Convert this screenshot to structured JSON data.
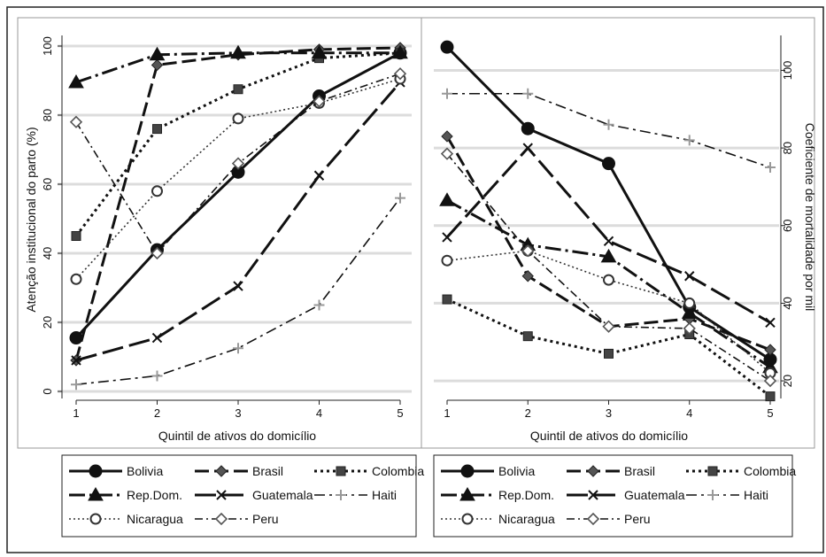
{
  "chart_data": [
    {
      "type": "line",
      "xlabel": "Quintil de ativos do domicílio",
      "ylabel": "Atenção institucional do parto (%)",
      "x": [
        1,
        2,
        3,
        4,
        5
      ],
      "xticks": [
        "1",
        "2",
        "3",
        "4",
        "5"
      ],
      "ylim": [
        0,
        100
      ],
      "yticks": [
        "0",
        "20",
        "40",
        "60",
        "80",
        "100"
      ],
      "grid": true,
      "series": [
        {
          "name": "Bolivia",
          "values": [
            15.5,
            41,
            63.5,
            85.5,
            98
          ]
        },
        {
          "name": "Brasil",
          "values": [
            9,
            94.5,
            97.5,
            99,
            99.5
          ]
        },
        {
          "name": "Colombia",
          "values": [
            45,
            76,
            87.5,
            96.5,
            98
          ]
        },
        {
          "name": "Rep.Dom.",
          "values": [
            89.5,
            97.5,
            98,
            98,
            98
          ]
        },
        {
          "name": "Guatemala",
          "values": [
            9,
            15.5,
            30.5,
            62.5,
            89.5
          ]
        },
        {
          "name": "Haiti",
          "values": [
            2,
            4.5,
            12.5,
            25,
            56
          ]
        },
        {
          "name": "Nicaragua",
          "values": [
            32.5,
            58,
            79,
            83.5,
            90.5
          ]
        },
        {
          "name": "Peru",
          "values": [
            78,
            40,
            66,
            84,
            92
          ]
        }
      ]
    },
    {
      "type": "line",
      "xlabel": "Quintil de ativos do domicílio",
      "ylabel": "Coeficiente de mortalidade por mil",
      "x": [
        1,
        2,
        3,
        4,
        5
      ],
      "xticks": [
        "1",
        "2",
        "3",
        "4",
        "5"
      ],
      "ylim": [
        15,
        109
      ],
      "yticks": [
        "20",
        "40",
        "60",
        "80",
        "100"
      ],
      "y_axis_side": "right",
      "grid": true,
      "series": [
        {
          "name": "Bolivia",
          "values": [
            106,
            85,
            76,
            39,
            25.5
          ]
        },
        {
          "name": "Brasil",
          "values": [
            83,
            47,
            34,
            36,
            28
          ]
        },
        {
          "name": "Colombia",
          "values": [
            41,
            31.5,
            27,
            32,
            16
          ]
        },
        {
          "name": "Rep.Dom.",
          "values": [
            66.5,
            55,
            52,
            37.5,
            23.5
          ]
        },
        {
          "name": "Guatemala",
          "values": [
            57,
            80,
            56,
            47,
            35
          ]
        },
        {
          "name": "Haiti",
          "values": [
            94,
            94,
            86,
            82,
            75
          ]
        },
        {
          "name": "Nicaragua",
          "values": [
            51,
            53.5,
            46,
            40,
            22
          ]
        },
        {
          "name": "Peru",
          "values": [
            78.5,
            53.5,
            34,
            33.5,
            20
          ]
        }
      ]
    }
  ],
  "styles": {
    "Bolivia": {
      "dash": "none",
      "marker": "circle-filled",
      "color": "#111111",
      "width": 3
    },
    "Brasil": {
      "dash": "16,6",
      "marker": "diamond-filled",
      "color": "#111111",
      "width": 3
    },
    "Colombia": {
      "dash": "3,4",
      "marker": "square-filled",
      "color": "#111111",
      "width": 3
    },
    "Rep.Dom.": {
      "dash": "18,5,3,5",
      "marker": "triangle-filled",
      "color": "#111111",
      "width": 3
    },
    "Guatemala": {
      "dash": "24,7",
      "marker": "x",
      "color": "#111111",
      "width": 3
    },
    "Haiti": {
      "dash": "12,5,3,5",
      "marker": "plus",
      "color": "#111111",
      "width": 1.6
    },
    "Nicaragua": {
      "dash": "2,3",
      "marker": "circle-hollow",
      "color": "#333333",
      "width": 1.6
    },
    "Peru": {
      "dash": "9,4,2,4",
      "marker": "diamond-hollow",
      "color": "#111111",
      "width": 1.6
    }
  },
  "legend": {
    "rows": [
      [
        "Bolivia",
        "Brasil",
        "Colombia"
      ],
      [
        "Rep.Dom.",
        "Guatemala",
        "Haiti"
      ],
      [
        "Nicaragua",
        "Peru"
      ]
    ],
    "placement": "bottom"
  }
}
